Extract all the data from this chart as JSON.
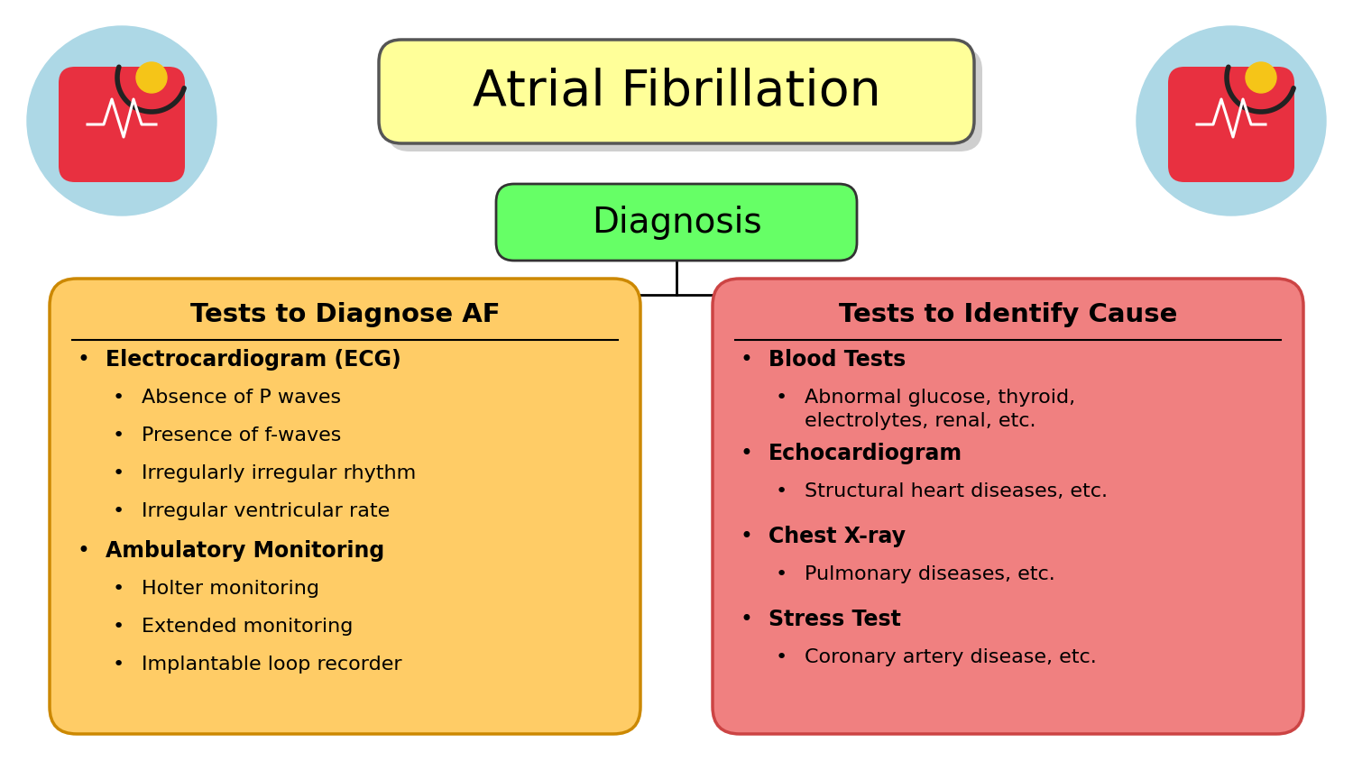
{
  "title": "Atrial Fibrillation",
  "title_box_color": "#FFFF99",
  "title_box_edge": "#555555",
  "diagnosis_label": "Diagnosis",
  "diagnosis_box_color": "#66FF66",
  "diagnosis_box_edge": "#333333",
  "background_color": "#FFFFFF",
  "left_box_color": "#FFCC66",
  "left_box_edge": "#CC8800",
  "right_box_color": "#F08080",
  "right_box_edge": "#CC4444",
  "left_title": "Tests to Diagnose AF",
  "right_title": "Tests to Identify Cause",
  "left_items": [
    {
      "text": "Electrocardiogram (ECG)",
      "level": 1,
      "bold": true
    },
    {
      "text": "Absence of P waves",
      "level": 2,
      "bold": false
    },
    {
      "text": "Presence of f-waves",
      "level": 2,
      "bold": false
    },
    {
      "text": "Irregularly irregular rhythm",
      "level": 2,
      "bold": false
    },
    {
      "text": "Irregular ventricular rate",
      "level": 2,
      "bold": false
    },
    {
      "text": "Ambulatory Monitoring",
      "level": 1,
      "bold": true
    },
    {
      "text": "Holter monitoring",
      "level": 2,
      "bold": false
    },
    {
      "text": "Extended monitoring",
      "level": 2,
      "bold": false
    },
    {
      "text": "Implantable loop recorder",
      "level": 2,
      "bold": false
    }
  ],
  "right_items": [
    {
      "text": "Blood Tests",
      "level": 1,
      "bold": true
    },
    {
      "text": "Abnormal glucose, thyroid,\nelectrolytes, renal, etc.",
      "level": 2,
      "bold": false
    },
    {
      "text": "Echocardiogram",
      "level": 1,
      "bold": true
    },
    {
      "text": "Structural heart diseases, etc.",
      "level": 2,
      "bold": false
    },
    {
      "text": "Chest X-ray",
      "level": 1,
      "bold": true
    },
    {
      "text": "Pulmonary diseases, etc.",
      "level": 2,
      "bold": false
    },
    {
      "text": "Stress Test",
      "level": 1,
      "bold": true
    },
    {
      "text": "Coronary artery disease, etc.",
      "level": 2,
      "bold": false
    }
  ],
  "circle_color": "#ADD8E6",
  "heart_color": "#E83040",
  "stethoscope_color": "#F5C518",
  "ecg_color": "#FFFFFF"
}
